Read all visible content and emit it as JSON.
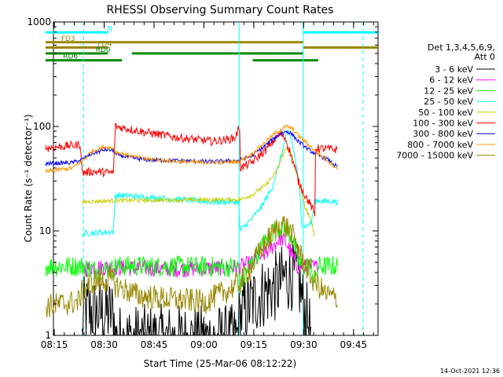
{
  "chart_data": {
    "type": "line",
    "title": "RHESSI Observing Summary Count Rates",
    "xlabel": "Start Time (25-Mar-06 08:12:22)",
    "ylabel": "Count Rate (s⁻¹ detector⁻¹)",
    "yscale": "log",
    "ylim": [
      1,
      1000
    ],
    "xlim_min": [
      2.37,
      100.0
    ],
    "x_ticks": [
      {
        "m": 2.63,
        "label": "08:15"
      },
      {
        "m": 17.63,
        "label": "08:30"
      },
      {
        "m": 32.63,
        "label": "08:45"
      },
      {
        "m": 47.63,
        "label": "09:00"
      },
      {
        "m": 62.63,
        "label": "09:15"
      },
      {
        "m": 77.63,
        "label": "09:30"
      },
      {
        "m": 92.63,
        "label": "09:45"
      }
    ],
    "y_ticks": [
      {
        "v": 1,
        "label": "1"
      },
      {
        "v": 10,
        "label": "10"
      },
      {
        "v": 100,
        "label": "100"
      },
      {
        "v": 1000,
        "label": "1000"
      }
    ],
    "legend": {
      "header": [
        "Det 1,3,4,5,6,9,",
        "Att 0"
      ],
      "placement": "right"
    },
    "series": [
      {
        "name": "3 - 6 keV",
        "color": "#000000",
        "noise": 0.35,
        "points": [
          [
            11,
            0.9
          ],
          [
            11.5,
            1.7
          ],
          [
            20.5,
            1.6
          ],
          [
            20.9,
            0.9
          ],
          [
            57.5,
            0.9
          ],
          [
            58.5,
            1.5
          ],
          [
            65,
            2.5
          ],
          [
            70,
            3.0
          ],
          [
            72,
            3.6
          ],
          [
            74,
            3.8
          ],
          [
            76,
            3.4
          ],
          [
            77.5,
            1.9
          ],
          [
            79,
            1.3
          ],
          [
            80,
            0.9
          ]
        ]
      },
      {
        "name": "6 - 12 keV",
        "color": "#ff00ff",
        "noise": 0.08,
        "points": [
          [
            11,
            4.2
          ],
          [
            14,
            4.5
          ],
          [
            30,
            4.4
          ],
          [
            40,
            4.3
          ],
          [
            50,
            4.4
          ],
          [
            58,
            4.5
          ],
          [
            62,
            4.9
          ],
          [
            66,
            6.0
          ],
          [
            69,
            7.5
          ],
          [
            70.5,
            8.5
          ],
          [
            72,
            8.0
          ],
          [
            74,
            6.0
          ],
          [
            75.5,
            4.6
          ],
          [
            79,
            4.5
          ],
          [
            82,
            4.5
          ]
        ]
      },
      {
        "name": "12 - 25 keV",
        "color": "#00ff00",
        "noise": 0.1,
        "points": [
          [
            0,
            4.6
          ],
          [
            11,
            4.6
          ],
          [
            14,
            4.3
          ],
          [
            20.5,
            4.3
          ],
          [
            21,
            4.6
          ],
          [
            40,
            4.6
          ],
          [
            55,
            4.5
          ],
          [
            58,
            4.5
          ],
          [
            58.5,
            2.9
          ],
          [
            60,
            3.8
          ],
          [
            63,
            5.5
          ],
          [
            67,
            8.5
          ],
          [
            69,
            10.5
          ],
          [
            71,
            11
          ],
          [
            73,
            10
          ],
          [
            75,
            7
          ],
          [
            76.5,
            4.6
          ],
          [
            80,
            4.6
          ],
          [
            81,
            3.0
          ],
          [
            82,
            4.6
          ],
          [
            88,
            4.6
          ]
        ]
      },
      {
        "name": "25 - 50 keV",
        "color": "#00ffff",
        "noise": 0.03,
        "points": [
          [
            11,
            9
          ],
          [
            11.5,
            9.5
          ],
          [
            20.5,
            9.8
          ],
          [
            21,
            22
          ],
          [
            40,
            20
          ],
          [
            50,
            19
          ],
          [
            58,
            19
          ],
          [
            58.5,
            10
          ],
          [
            62,
            13
          ],
          [
            65,
            17
          ],
          [
            68,
            25
          ],
          [
            70,
            40
          ],
          [
            71.5,
            62
          ],
          [
            72.5,
            85
          ],
          [
            73,
            88
          ],
          [
            73.5,
            84
          ],
          [
            75,
            50
          ],
          [
            76.5,
            22
          ],
          [
            77,
            12
          ],
          [
            78,
            11
          ],
          [
            80,
            12
          ],
          [
            81,
            19.5
          ],
          [
            88,
            19
          ]
        ]
      },
      {
        "name": "50 - 100 keV",
        "color": "#cccc00",
        "noise": 0.02,
        "points": [
          [
            11,
            18
          ],
          [
            11.5,
            19
          ],
          [
            20.5,
            19.5
          ],
          [
            20.9,
            19.5
          ],
          [
            58.5,
            20
          ],
          [
            62,
            22
          ],
          [
            66,
            27
          ],
          [
            69,
            35
          ],
          [
            70.5,
            45
          ],
          [
            71.5,
            55
          ],
          [
            72.5,
            62
          ],
          [
            73.5,
            58
          ],
          [
            75,
            40
          ],
          [
            76.5,
            26
          ],
          [
            78,
            17
          ],
          [
            80,
            12
          ],
          [
            81,
            8.5
          ]
        ]
      },
      {
        "name": "100 - 300 keV",
        "color": "#ff0000",
        "noise": 0.04,
        "points": [
          [
            0,
            62
          ],
          [
            10.5,
            67
          ],
          [
            11,
            36
          ],
          [
            14,
            37
          ],
          [
            20.5,
            36
          ],
          [
            21,
            100
          ],
          [
            30,
            88
          ],
          [
            40,
            78
          ],
          [
            50,
            72
          ],
          [
            55,
            75
          ],
          [
            57,
            78
          ],
          [
            58.5,
            100
          ],
          [
            58.6,
            40
          ],
          [
            62,
            45
          ],
          [
            66,
            58
          ],
          [
            69,
            75
          ],
          [
            70.5,
            85
          ],
          [
            72,
            78
          ],
          [
            74,
            50
          ],
          [
            76,
            30
          ],
          [
            78,
            22
          ],
          [
            80,
            17
          ],
          [
            81,
            14
          ],
          [
            81.1,
            62
          ],
          [
            88,
            60
          ]
        ]
      },
      {
        "name": "300 - 800 keV",
        "color": "#0000ff",
        "noise": 0.02,
        "points": [
          [
            0,
            44
          ],
          [
            8,
            45
          ],
          [
            11,
            48
          ],
          [
            14,
            55
          ],
          [
            18,
            60
          ],
          [
            20.5,
            59
          ],
          [
            21,
            54
          ],
          [
            26,
            50
          ],
          [
            30,
            48
          ],
          [
            40,
            47
          ],
          [
            50,
            46
          ],
          [
            58,
            47
          ],
          [
            62,
            52
          ],
          [
            66,
            65
          ],
          [
            69,
            78
          ],
          [
            71,
            86
          ],
          [
            72.5,
            90
          ],
          [
            74,
            85
          ],
          [
            76,
            72
          ],
          [
            79,
            60
          ],
          [
            82,
            53
          ],
          [
            85,
            48
          ],
          [
            88,
            40
          ]
        ]
      },
      {
        "name": "800 - 7000 keV",
        "color": "#ff9900",
        "noise": 0.02,
        "points": [
          [
            0,
            37
          ],
          [
            8,
            40
          ],
          [
            11,
            46
          ],
          [
            14,
            58
          ],
          [
            18,
            64
          ],
          [
            20.5,
            62
          ],
          [
            21,
            57
          ],
          [
            26,
            52
          ],
          [
            30,
            49
          ],
          [
            40,
            46
          ],
          [
            50,
            45
          ],
          [
            58,
            46
          ],
          [
            62,
            54
          ],
          [
            66,
            70
          ],
          [
            69,
            86
          ],
          [
            71,
            95
          ],
          [
            72.5,
            100
          ],
          [
            74,
            96
          ],
          [
            76,
            82
          ],
          [
            79,
            67
          ],
          [
            82,
            55
          ],
          [
            85,
            47
          ],
          [
            88,
            38
          ]
        ]
      },
      {
        "name": "7000 - 15000 keV",
        "color": "#998800",
        "noise": 0.12,
        "points": [
          [
            0,
            1.9
          ],
          [
            10,
            2.1
          ],
          [
            11,
            2.6
          ],
          [
            14,
            3.2
          ],
          [
            20.5,
            3.4
          ],
          [
            21,
            3.0
          ],
          [
            28,
            2.4
          ],
          [
            38,
            2.2
          ],
          [
            48,
            2.1
          ],
          [
            55,
            2.7
          ],
          [
            58.5,
            3.2
          ],
          [
            62,
            4.5
          ],
          [
            66,
            7.5
          ],
          [
            69,
            10
          ],
          [
            71,
            12
          ],
          [
            73,
            10.5
          ],
          [
            75,
            8
          ],
          [
            77,
            5.5
          ],
          [
            80,
            3.5
          ],
          [
            84,
            2.5
          ],
          [
            88,
            2.2
          ]
        ]
      }
    ],
    "segments": [
      {
        "label": "N",
        "color": "#00ffff",
        "y": 795,
        "ranges": [
          [
            0,
            18.8
          ],
          [
            77.5,
            100
          ]
        ],
        "label_m": 19.3
      },
      {
        "label": "FD3",
        "color": "#998800",
        "y": 640,
        "ranges": [
          [
            0,
            77.5
          ]
        ],
        "label_m": 6.8
      },
      {
        "label": "FD4",
        "color": "#998800",
        "y": 570,
        "ranges": [
          [
            0,
            18.8
          ],
          [
            77.5,
            100
          ]
        ],
        "label_m": 17.8
      },
      {
        "label": "RD0",
        "color": "#008800",
        "y": 500,
        "ranges": [
          [
            0,
            18.8
          ],
          [
            26,
            77.5
          ]
        ],
        "label_m": 17.3
      },
      {
        "label": "RD6",
        "color": "#008800",
        "y": 430,
        "ranges": [
          [
            0,
            23
          ],
          [
            62.3,
            82
          ]
        ],
        "label_m": 7.5
      }
    ],
    "vlines": {
      "color": "#00ffff",
      "solid": [
        58.2,
        77.5
      ],
      "dashed": [
        11.4,
        95.5
      ]
    }
  },
  "footer": {
    "timestamp": "14-Oct-2021 12:36"
  }
}
